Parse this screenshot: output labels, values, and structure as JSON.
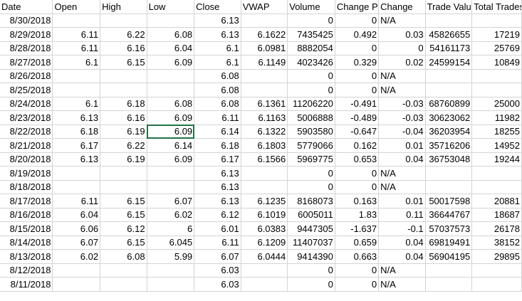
{
  "sheet": {
    "headers": [
      "Date",
      "Open",
      "High",
      "Low",
      "Close",
      "VWAP",
      "Volume",
      "Change Pe",
      "Change",
      "Trade Valu",
      "Total Trades"
    ],
    "selected_cell": {
      "row": 8,
      "col": 3
    },
    "rows": [
      [
        "8/30/2018",
        "",
        "",
        "",
        "6.13",
        "",
        "0",
        "0",
        "N/A",
        "",
        ""
      ],
      [
        "8/29/2018",
        "6.11",
        "6.22",
        "6.08",
        "6.13",
        "6.1622",
        "7435425",
        "0.492",
        "0.03",
        "45826655",
        "17219"
      ],
      [
        "8/28/2018",
        "6.11",
        "6.16",
        "6.04",
        "6.1",
        "6.0981",
        "8882054",
        "0",
        "0",
        "54161173",
        "25769"
      ],
      [
        "8/27/2018",
        "6.1",
        "6.15",
        "6.09",
        "6.1",
        "6.1149",
        "4023426",
        "0.329",
        "0.02",
        "24599154",
        "10849"
      ],
      [
        "8/26/2018",
        "",
        "",
        "",
        "6.08",
        "",
        "0",
        "0",
        "N/A",
        "",
        ""
      ],
      [
        "8/25/2018",
        "",
        "",
        "",
        "6.08",
        "",
        "0",
        "0",
        "N/A",
        "",
        ""
      ],
      [
        "8/24/2018",
        "6.1",
        "6.18",
        "6.08",
        "6.08",
        "6.1361",
        "11206220",
        "-0.491",
        "-0.03",
        "68760899",
        "25000"
      ],
      [
        "8/23/2018",
        "6.13",
        "6.16",
        "6.09",
        "6.11",
        "6.1163",
        "5006888",
        "-0.489",
        "-0.03",
        "30623062",
        "11982"
      ],
      [
        "8/22/2018",
        "6.18",
        "6.19",
        "6.09",
        "6.14",
        "6.1322",
        "5903580",
        "-0.647",
        "-0.04",
        "36203954",
        "18255"
      ],
      [
        "8/21/2018",
        "6.17",
        "6.22",
        "6.14",
        "6.18",
        "6.1803",
        "5779066",
        "0.162",
        "0.01",
        "35716206",
        "14952"
      ],
      [
        "8/20/2018",
        "6.13",
        "6.19",
        "6.09",
        "6.17",
        "6.1566",
        "5969775",
        "0.653",
        "0.04",
        "36753048",
        "19244"
      ],
      [
        "8/19/2018",
        "",
        "",
        "",
        "6.13",
        "",
        "0",
        "0",
        "N/A",
        "",
        ""
      ],
      [
        "8/18/2018",
        "",
        "",
        "",
        "6.13",
        "",
        "0",
        "0",
        "N/A",
        "",
        ""
      ],
      [
        "8/17/2018",
        "6.11",
        "6.15",
        "6.07",
        "6.13",
        "6.1235",
        "8168073",
        "0.163",
        "0.01",
        "50017598",
        "20881"
      ],
      [
        "8/16/2018",
        "6.04",
        "6.15",
        "6.02",
        "6.12",
        "6.1019",
        "6005011",
        "1.83",
        "0.11",
        "36644767",
        "18687"
      ],
      [
        "8/15/2018",
        "6.06",
        "6.12",
        "6",
        "6.01",
        "6.0383",
        "9447305",
        "-1.637",
        "-0.1",
        "57037573",
        "26178"
      ],
      [
        "8/14/2018",
        "6.07",
        "6.15",
        "6.045",
        "6.11",
        "6.1209",
        "11407037",
        "0.659",
        "0.04",
        "69819491",
        "38152"
      ],
      [
        "8/13/2018",
        "6.02",
        "6.08",
        "5.99",
        "6.07",
        "6.0444",
        "9414390",
        "0.663",
        "0.04",
        "56904195",
        "29895"
      ],
      [
        "8/12/2018",
        "",
        "",
        "",
        "6.03",
        "",
        "0",
        "0",
        "N/A",
        "",
        ""
      ],
      [
        "8/11/2018",
        "",
        "",
        "",
        "6.03",
        "",
        "0",
        "0",
        "N/A",
        "",
        ""
      ]
    ]
  }
}
